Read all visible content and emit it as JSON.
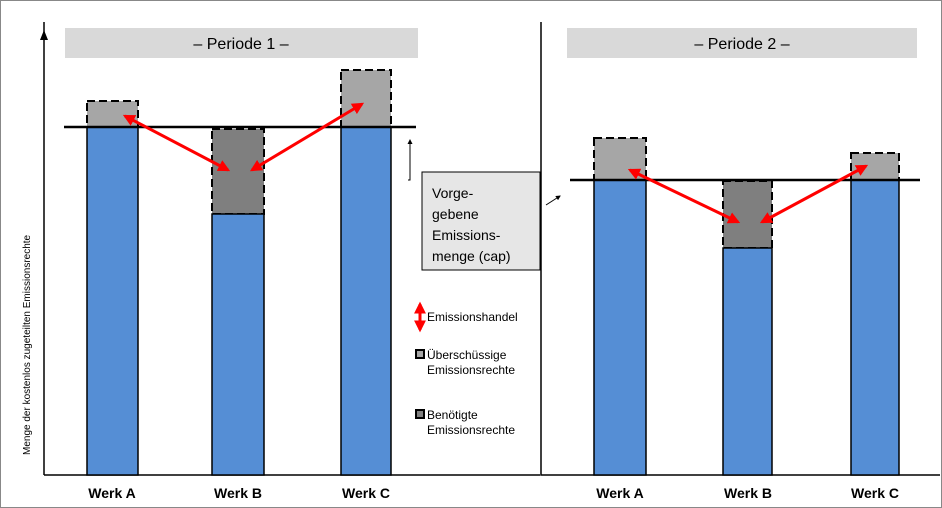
{
  "panels": [
    {
      "title": "– Periode 1 –",
      "plants": [
        "Werk A",
        "Werk B",
        "Werk C"
      ]
    },
    {
      "title": "– Periode 2 –",
      "plants": [
        "Werk A",
        "Werk B",
        "Werk C"
      ]
    }
  ],
  "y_axis_label": "Menge der kostenlos zugeteilten Emissionsrechte",
  "callout": [
    "Vorge-",
    "gebene",
    "Emissions-",
    "menge (cap)"
  ],
  "legend": {
    "trade": "Emissionshandel",
    "surplus": [
      "Überschüssige",
      "Emissionsrechte"
    ],
    "needed": [
      "Benötigte",
      "Emissionsrechte"
    ]
  }
}
